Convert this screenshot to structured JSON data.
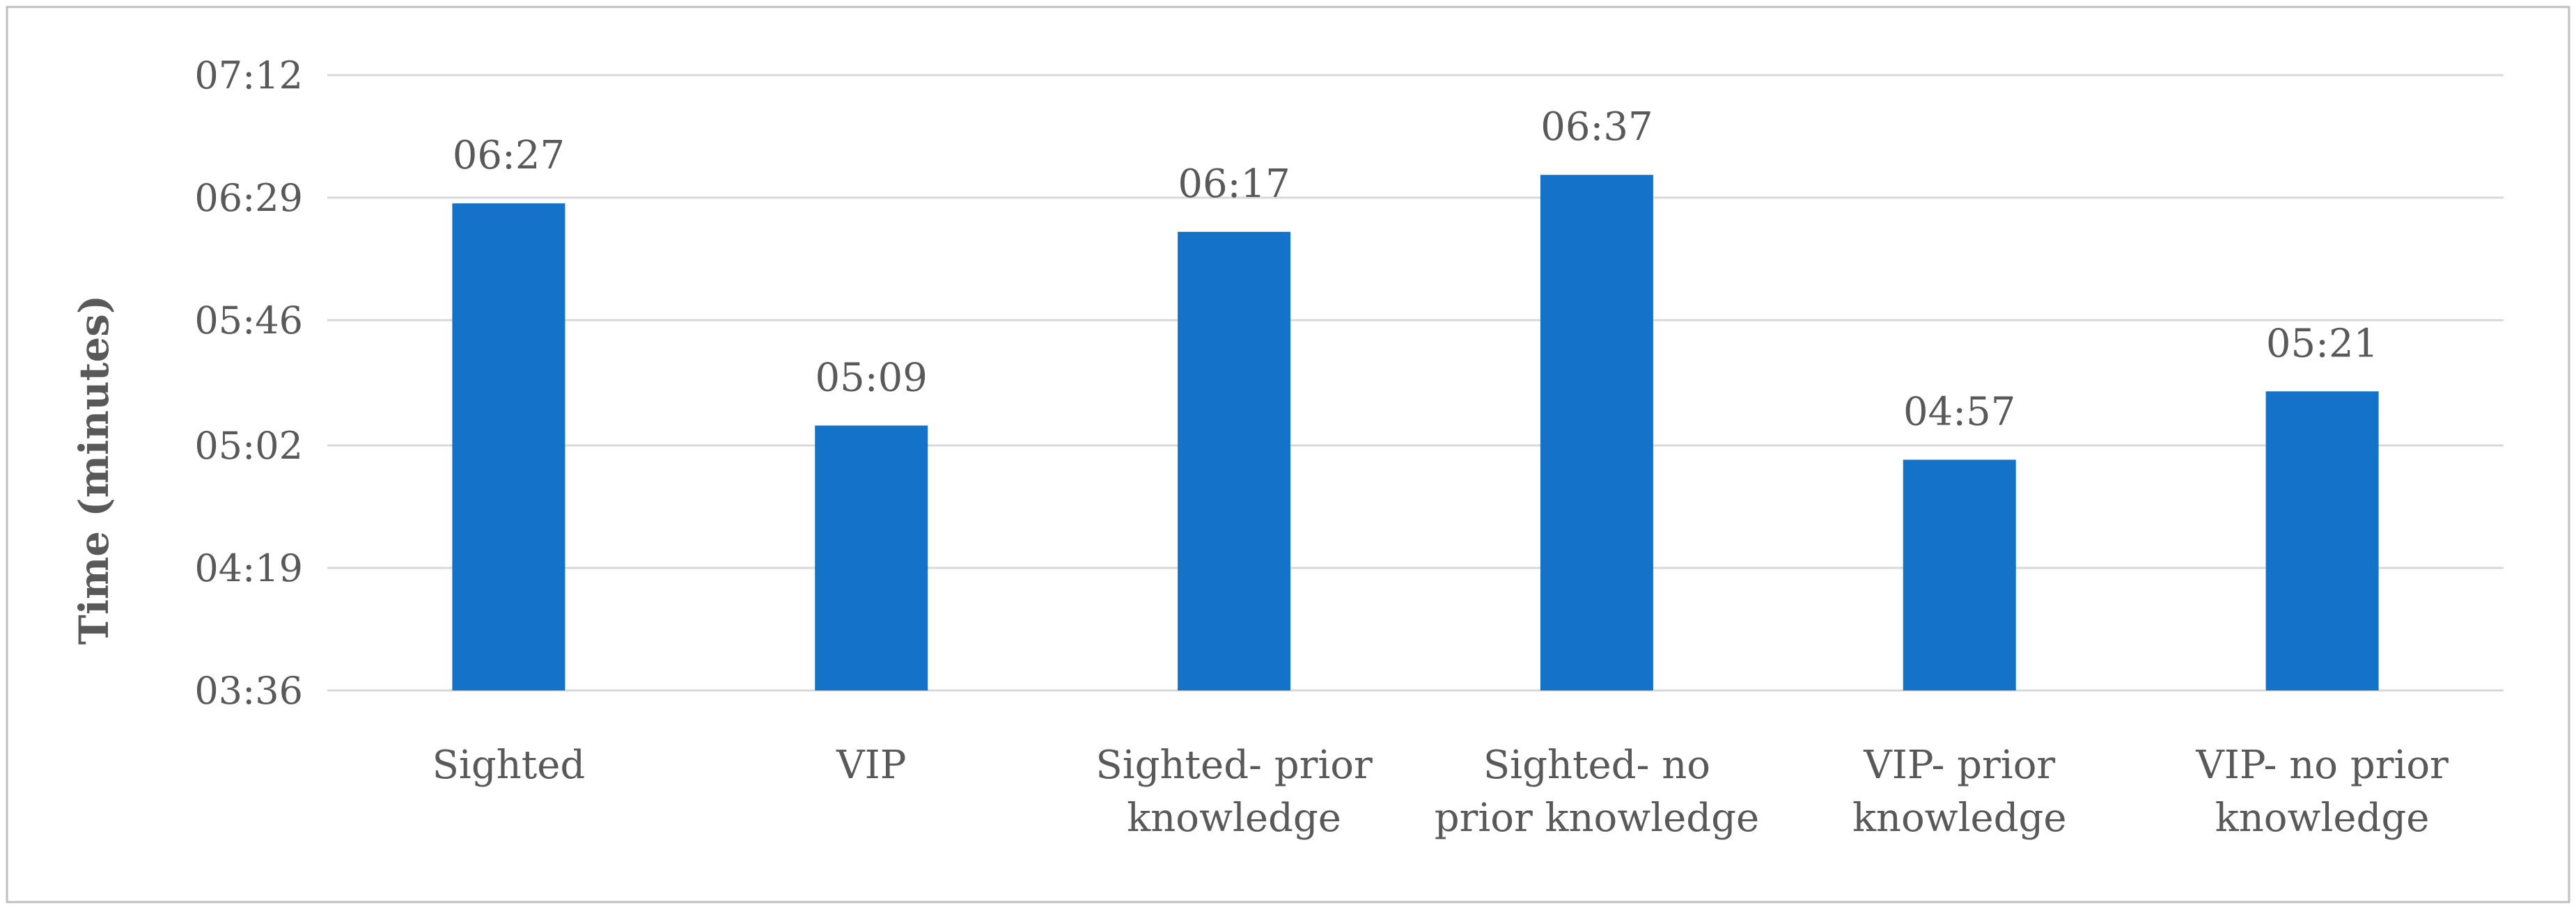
{
  "chart_data": {
    "type": "bar",
    "title": "",
    "xlabel": "",
    "ylabel": "Time (minutes)",
    "categories": [
      [
        "Sighted"
      ],
      [
        "VIP"
      ],
      [
        "Sighted- prior",
        "knowledge"
      ],
      [
        "Sighted- no",
        "prior knowledge"
      ],
      [
        "VIP- prior",
        "knowledge"
      ],
      [
        "VIP- no prior",
        "knowledge"
      ]
    ],
    "values": [
      387,
      309,
      377,
      397,
      297,
      321
    ],
    "value_labels": [
      "06:27",
      "05:09",
      "06:17",
      "06:37",
      "04:57",
      "05:21"
    ],
    "ylim": [
      216,
      432
    ],
    "y_ticks": [
      216,
      259,
      302,
      346,
      389,
      432
    ],
    "y_tick_labels": [
      "03:36",
      "04:19",
      "05:02",
      "05:46",
      "06:29",
      "07:12"
    ],
    "bar_color": "#1472c8",
    "grid": true,
    "legend": "none"
  }
}
